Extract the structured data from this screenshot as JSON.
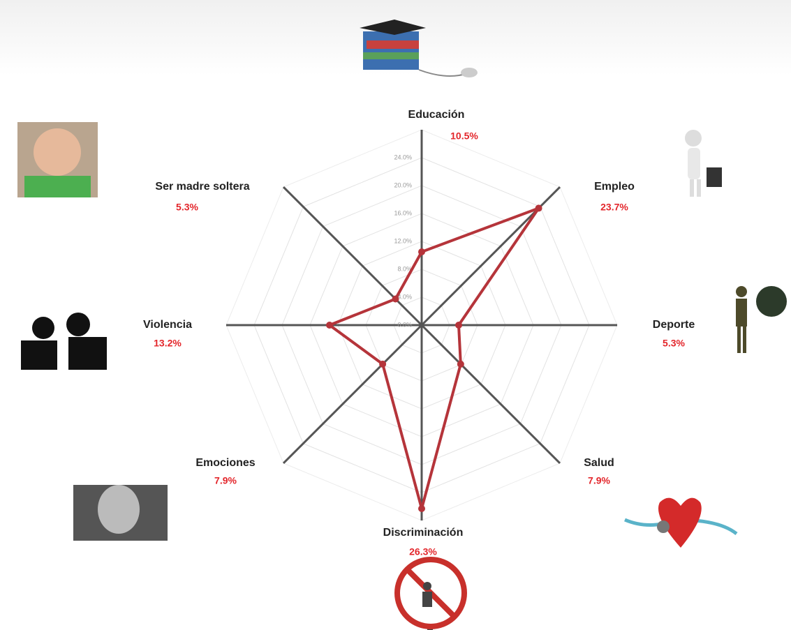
{
  "chart_data": {
    "type": "radar",
    "categories": [
      "Educación",
      "Empleo",
      "Deporte",
      "Salud",
      "Discriminación",
      "Emociones",
      "Violencia",
      "Ser madre soltera"
    ],
    "series": [
      {
        "color": "#b5343a",
        "values": [
          10.5,
          23.7,
          5.3,
          7.9,
          26.3,
          7.9,
          13.2,
          5.3
        ],
        "value_labels": [
          "10.5%",
          "23.7%",
          "5.3%",
          "7.9%",
          "26.3%",
          "7.9%",
          "13.2%",
          "5.3%"
        ]
      }
    ],
    "rlim": [
      0,
      28
    ],
    "rticks": [
      {
        "value": 0,
        "label": "0.0%"
      },
      {
        "value": 4,
        "label": "4.0%"
      },
      {
        "value": 8,
        "label": "8.0%"
      },
      {
        "value": 12,
        "label": "12.0%"
      },
      {
        "value": 16,
        "label": "16.0%"
      },
      {
        "value": 20,
        "label": "20.0%"
      },
      {
        "value": 24,
        "label": "24.0%"
      }
    ],
    "grid": true
  }
}
